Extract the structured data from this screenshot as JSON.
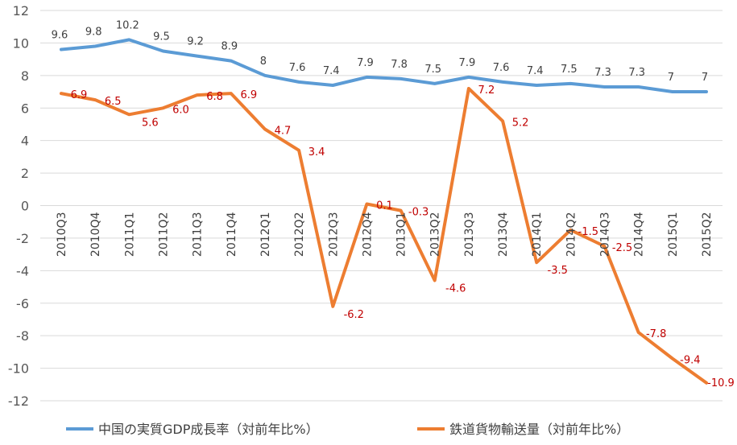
{
  "chart_data": {
    "type": "line",
    "title": "",
    "xlabel": "",
    "ylabel": "",
    "ylim": [
      -12,
      12
    ],
    "ytick_step": 2,
    "grid": "horizontal",
    "legend_placement": "bottom",
    "categories": [
      "2010Q3",
      "2010Q4",
      "2011Q1",
      "2011Q2",
      "2011Q3",
      "2011Q4",
      "2012Q1",
      "2012Q2",
      "2012Q3",
      "2012Q4",
      "2013Q1",
      "2013Q2",
      "2013Q3",
      "2013Q4",
      "2014Q1",
      "2014Q2",
      "2014Q3",
      "2014Q4",
      "2015Q1",
      "2015Q2"
    ],
    "series": [
      {
        "name": "中国の実質GDP成長率（対前年比%）",
        "color": "#5b9bd5",
        "label_color": "#404040",
        "values": [
          9.6,
          9.8,
          10.2,
          9.5,
          9.2,
          8.9,
          8,
          7.6,
          7.4,
          7.9,
          7.8,
          7.5,
          7.9,
          7.6,
          7.4,
          7.5,
          7.3,
          7.3,
          7,
          7
        ],
        "labels": [
          "9.6",
          "9.8",
          "10.2",
          "9.5",
          "9.2",
          "8.9",
          "8",
          "7.6",
          "7.4",
          "7.9",
          "7.8",
          "7.5",
          "7.9",
          "7.6",
          "7.4",
          "7.5",
          "7.3",
          "7.3",
          "7",
          "7"
        ]
      },
      {
        "name": "鉄道貨物輸送量（対前年比%）",
        "color": "#ed7d31",
        "label_color": "#c00000",
        "values": [
          6.9,
          6.5,
          5.6,
          6.0,
          6.8,
          6.9,
          4.7,
          3.4,
          -6.2,
          0.1,
          -0.3,
          -4.6,
          7.2,
          5.2,
          -3.5,
          -1.5,
          -2.5,
          -7.8,
          -9.4,
          -10.9
        ],
        "labels": [
          "6.9",
          "6.5",
          "5.6",
          "6.0",
          "6.8",
          "6.9",
          "4.7",
          "3.4",
          "-6.2",
          "0.1",
          "-0.3",
          "-4.6",
          "7.2",
          "5.2",
          "-3.5",
          "-1.5",
          "-2.5",
          "-7.8",
          "-9.4",
          "-10.9"
        ]
      }
    ]
  }
}
